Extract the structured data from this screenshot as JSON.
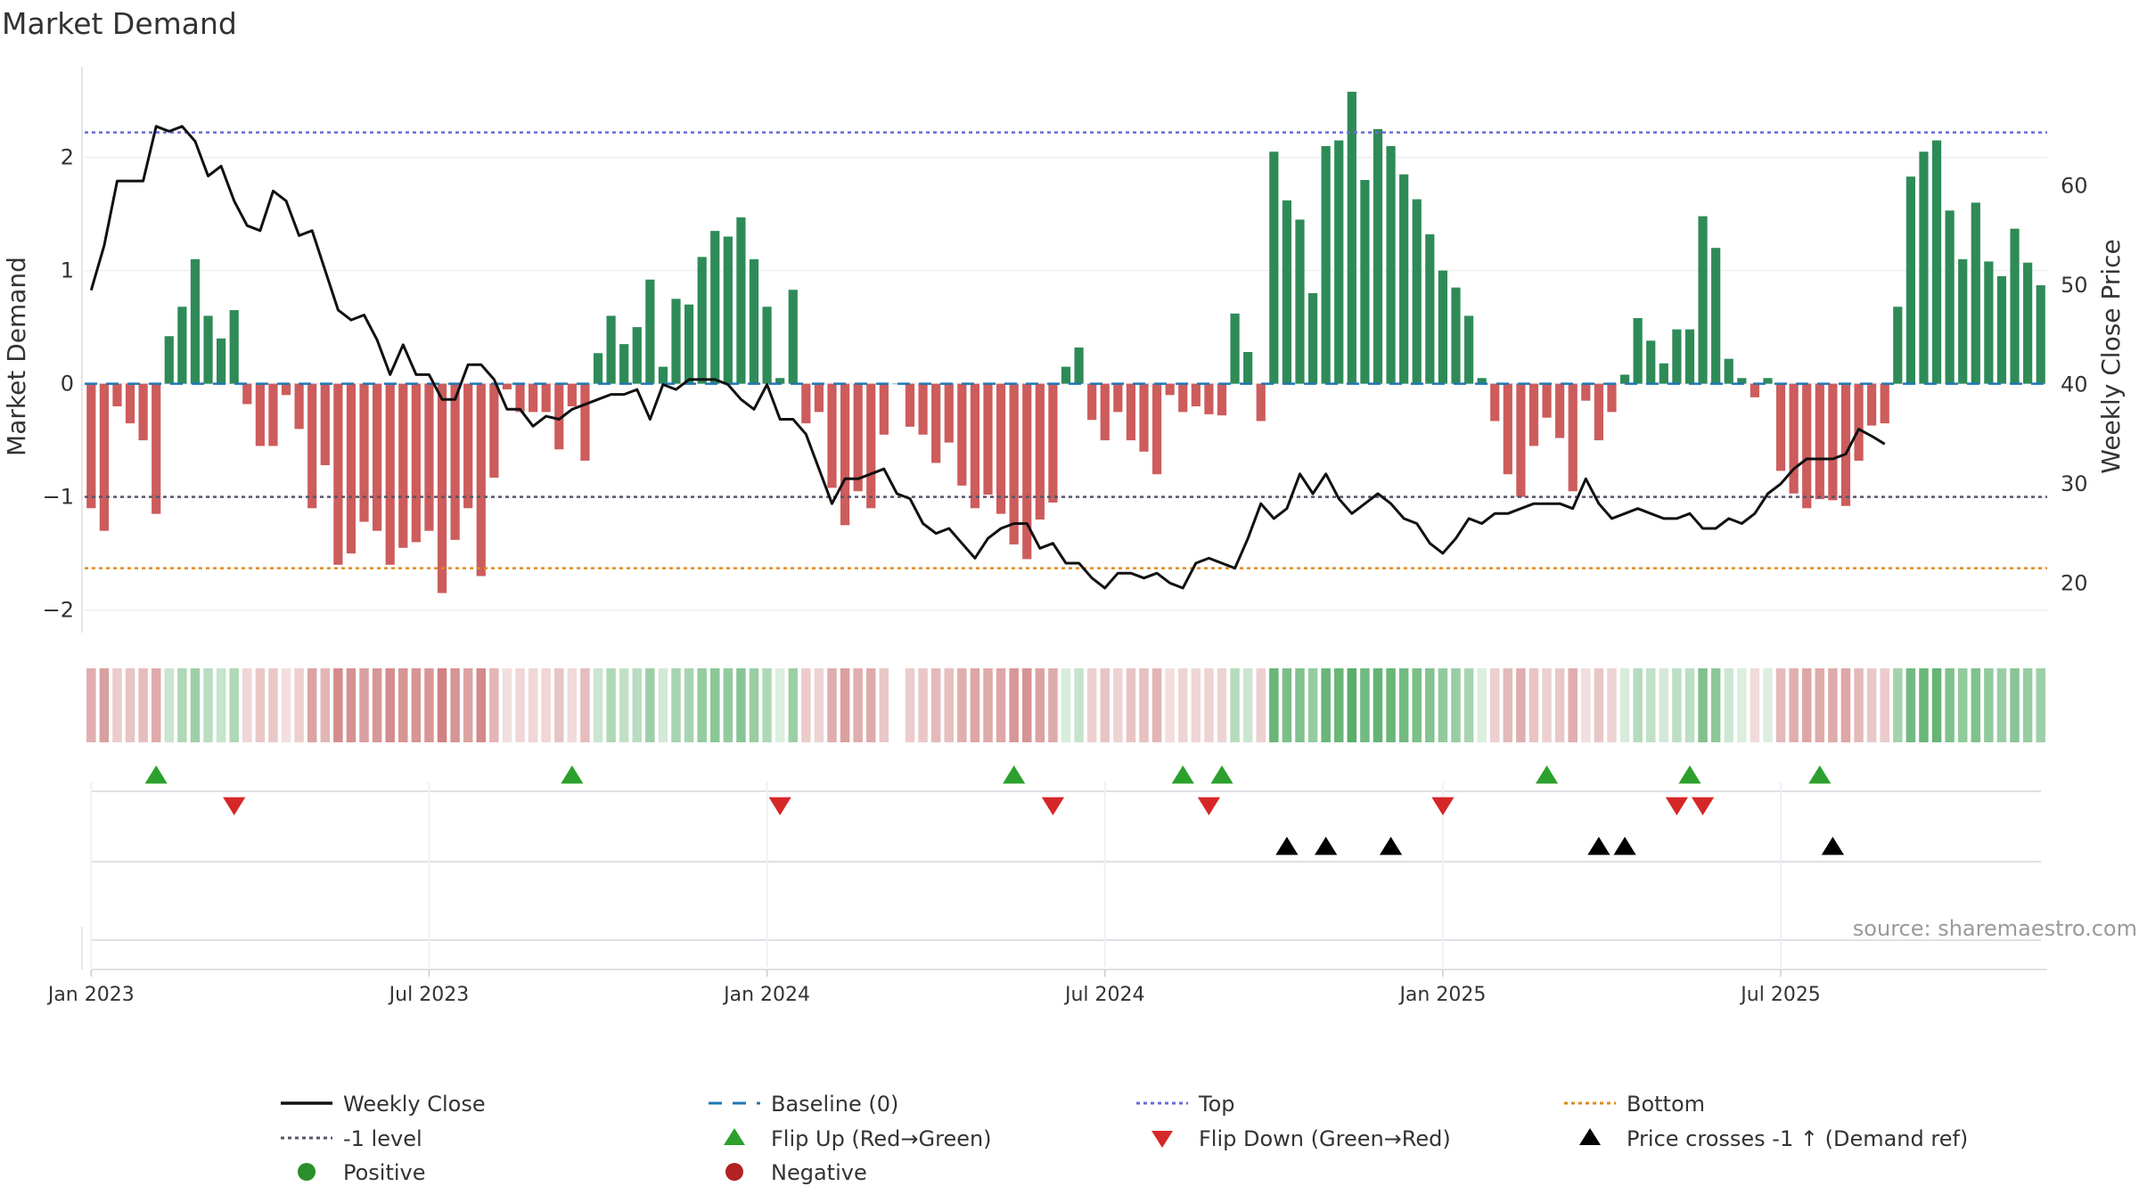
{
  "chart_data": {
    "type": "bar",
    "title": "Market Demand",
    "ylabel_left": "Market Demand",
    "ylabel_right": "Weekly Close Price",
    "ylim_left": [
      -2.2,
      2.8
    ],
    "ylim_right": [
      15,
      72
    ],
    "yticks_left": [
      {
        "value": 2,
        "label": "2"
      },
      {
        "value": 1,
        "label": "1"
      },
      {
        "value": 0,
        "label": "0"
      },
      {
        "value": -1,
        "label": "−1"
      },
      {
        "value": -2,
        "label": "−2"
      }
    ],
    "yticks_right": [
      {
        "value": 60,
        "label": "60"
      },
      {
        "value": 50,
        "label": "50"
      },
      {
        "value": 40,
        "label": "40"
      },
      {
        "value": 30,
        "label": "30"
      },
      {
        "value": 20,
        "label": "20"
      }
    ],
    "xticks": [
      {
        "week": 0,
        "label": "Jan 2023"
      },
      {
        "week": 26,
        "label": "Jul 2023"
      },
      {
        "week": 52,
        "label": "Jan 2024"
      },
      {
        "week": 78,
        "label": "Jul 2024"
      },
      {
        "week": 104,
        "label": "Jan 2025"
      },
      {
        "week": 130,
        "label": "Jul 2025"
      }
    ],
    "reference_lines": {
      "baseline": 0,
      "top": 2.22,
      "minus_one": -1,
      "bottom": -1.63
    },
    "demand": [
      -1.1,
      -1.3,
      -0.2,
      -0.35,
      -0.5,
      -1.15,
      0.42,
      0.68,
      1.1,
      0.6,
      0.4,
      0.65,
      -0.18,
      -0.55,
      -0.55,
      -0.1,
      -0.4,
      -1.1,
      -0.72,
      -1.6,
      -1.5,
      -1.22,
      -1.3,
      -1.6,
      -1.45,
      -1.4,
      -1.3,
      -1.85,
      -1.38,
      -1.1,
      -1.7,
      -0.83,
      -0.05,
      -0.25,
      -0.25,
      -0.25,
      -0.58,
      -0.2,
      -0.68,
      0.27,
      0.6,
      0.35,
      0.5,
      0.92,
      0.15,
      0.75,
      0.7,
      1.12,
      1.35,
      1.3,
      1.47,
      1.1,
      0.68,
      0.05,
      0.83,
      -0.35,
      -0.25,
      -0.92,
      -1.25,
      -0.95,
      -1.1,
      -0.45,
      0,
      -0.38,
      -0.45,
      -0.7,
      -0.52,
      -0.9,
      -1.1,
      -0.98,
      -1.15,
      -1.42,
      -1.55,
      -1.2,
      -1.05,
      0.15,
      0.32,
      -0.32,
      -0.5,
      -0.25,
      -0.5,
      -0.6,
      -0.8,
      -0.1,
      -0.25,
      -0.2,
      -0.27,
      -0.28,
      0.62,
      0.28,
      -0.33,
      2.05,
      1.62,
      1.45,
      0.8,
      2.1,
      2.15,
      2.58,
      1.8,
      2.25,
      2.1,
      1.85,
      1.63,
      1.32,
      1.0,
      0.85,
      0.6,
      0.05,
      -0.33,
      -0.8,
      -1.0,
      -0.55,
      -0.3,
      -0.48,
      -0.95,
      -0.15,
      -0.5,
      -0.25,
      0.08,
      0.58,
      0.38,
      0.18,
      0.48,
      0.48,
      1.48,
      1.2,
      0.22,
      0.05,
      -0.12,
      0.05,
      -0.77,
      -0.97,
      -1.1,
      -1.02,
      -1.03,
      -1.08,
      -0.68,
      -0.37,
      -0.35,
      0.68,
      1.83,
      2.05,
      2.15,
      1.53,
      1.1,
      1.6,
      1.08,
      0.95,
      1.37,
      1.07,
      0.87
    ],
    "price": [
      49.5,
      54,
      60.5,
      60.5,
      60.5,
      66,
      65.5,
      66,
      64.5,
      61,
      62,
      58.5,
      56,
      55.5,
      59.5,
      58.5,
      55,
      55.5,
      51.5,
      47.5,
      46.5,
      47,
      44.5,
      41,
      44,
      41,
      41,
      38.5,
      38.5,
      42,
      42,
      40.5,
      37.5,
      37.5,
      35.8,
      36.8,
      36.5,
      37.5,
      38,
      38.5,
      39,
      39,
      39.5,
      36.5,
      40,
      39.5,
      40.5,
      40.5,
      40.5,
      40,
      38.5,
      37.5,
      40,
      36.5,
      36.5,
      35,
      31.5,
      28,
      30.5,
      30.5,
      31,
      31.5,
      29,
      28.5,
      26,
      25,
      25.5,
      24,
      22.5,
      24.5,
      25.5,
      26,
      26,
      23.5,
      24,
      22,
      22,
      20.5,
      19.5,
      21,
      21,
      20.5,
      21,
      20,
      19.5,
      22,
      22.5,
      22,
      21.5,
      24.5,
      28,
      26.5,
      27.5,
      31,
      29,
      31,
      28.5,
      27,
      28,
      29,
      28,
      26.5,
      26,
      24,
      23,
      24.5,
      26.5,
      26,
      27,
      27,
      27.5,
      28,
      28,
      28,
      27.5,
      30.5,
      28,
      26.5,
      27,
      27.5,
      27,
      26.5,
      26.5,
      27,
      25.5,
      25.5,
      26.5,
      26,
      27,
      29,
      30,
      31.5,
      32.5,
      32.5,
      32.5,
      33,
      35.5,
      34.8,
      34
    ],
    "heat_cells": [
      -0.55,
      -0.65,
      -0.35,
      -0.4,
      -0.45,
      -0.58,
      0.3,
      0.45,
      0.55,
      0.4,
      0.32,
      0.45,
      -0.28,
      -0.38,
      -0.38,
      -0.22,
      -0.32,
      -0.62,
      -0.5,
      -0.78,
      -0.75,
      -0.65,
      -0.7,
      -0.78,
      -0.72,
      -0.72,
      -0.7,
      -0.85,
      -0.72,
      -0.62,
      -0.8,
      -0.5,
      -0.22,
      -0.28,
      -0.28,
      -0.28,
      -0.4,
      -0.25,
      -0.45,
      0.3,
      0.45,
      0.35,
      0.4,
      0.55,
      0.25,
      0.5,
      0.5,
      0.6,
      0.65,
      0.62,
      0.68,
      0.58,
      0.45,
      0.2,
      0.55,
      -0.35,
      -0.3,
      -0.55,
      -0.65,
      -0.55,
      -0.58,
      -0.38,
      null,
      -0.35,
      -0.38,
      -0.48,
      -0.42,
      -0.55,
      -0.6,
      -0.58,
      -0.6,
      -0.7,
      -0.72,
      -0.62,
      -0.58,
      0.22,
      0.32,
      -0.32,
      -0.4,
      -0.3,
      -0.4,
      -0.42,
      -0.5,
      -0.22,
      -0.3,
      -0.28,
      -0.3,
      -0.3,
      0.42,
      0.3,
      -0.32,
      0.85,
      0.75,
      0.72,
      0.6,
      0.85,
      0.85,
      0.95,
      0.8,
      0.88,
      0.85,
      0.8,
      0.75,
      0.7,
      0.62,
      0.58,
      0.5,
      0.2,
      -0.32,
      -0.48,
      -0.55,
      -0.4,
      -0.32,
      -0.38,
      -0.55,
      -0.22,
      -0.38,
      -0.3,
      0.22,
      0.42,
      0.35,
      0.25,
      0.38,
      0.38,
      0.72,
      0.65,
      0.28,
      0.2,
      -0.25,
      0.2,
      -0.48,
      -0.55,
      -0.6,
      -0.58,
      -0.58,
      -0.6,
      -0.48,
      -0.38,
      -0.35,
      0.52,
      0.8,
      0.85,
      0.88,
      0.72,
      0.62,
      0.72,
      0.62,
      0.58,
      0.68,
      0.6,
      0.55
    ],
    "flip_up_weeks": [
      5,
      37,
      71,
      84,
      87,
      112,
      123,
      133
    ],
    "flip_down_weeks": [
      11,
      53,
      74,
      86,
      104,
      122,
      124
    ],
    "price_cross_weeks": [
      92,
      95,
      100,
      116,
      118,
      134
    ],
    "source": "source: sharemaestro.com",
    "legend": [
      {
        "label": "Weekly Close",
        "symbol": "line-solid",
        "color": "#111111"
      },
      {
        "label": "Baseline (0)",
        "symbol": "line-dashed",
        "color": "#1f77b4"
      },
      {
        "label": "Top",
        "symbol": "line-dotted",
        "color": "#6b6bd6"
      },
      {
        "label": "Bottom",
        "symbol": "line-dotted",
        "color": "#e08a1e"
      },
      {
        "label": "-1 level",
        "symbol": "line-dotted",
        "color": "#55556a"
      },
      {
        "label": "Flip Up (Red→Green)",
        "symbol": "triangle-up",
        "color": "#2ca02c"
      },
      {
        "label": "Flip Down (Green→Red)",
        "symbol": "triangle-down",
        "color": "#d62728"
      },
      {
        "label": "Price crosses -1 ↑ (Demand ref)",
        "symbol": "triangle-up",
        "color": "#000000"
      },
      {
        "label": "Positive",
        "symbol": "circle",
        "color": "#2a8f2a"
      },
      {
        "label": "Negative",
        "symbol": "circle",
        "color": "#b22222"
      }
    ],
    "colors": {
      "positive_bar": "#2e8b57",
      "negative_bar": "#cd5c5c",
      "price_line": "#111111",
      "grid": "#e6e6e6"
    }
  }
}
